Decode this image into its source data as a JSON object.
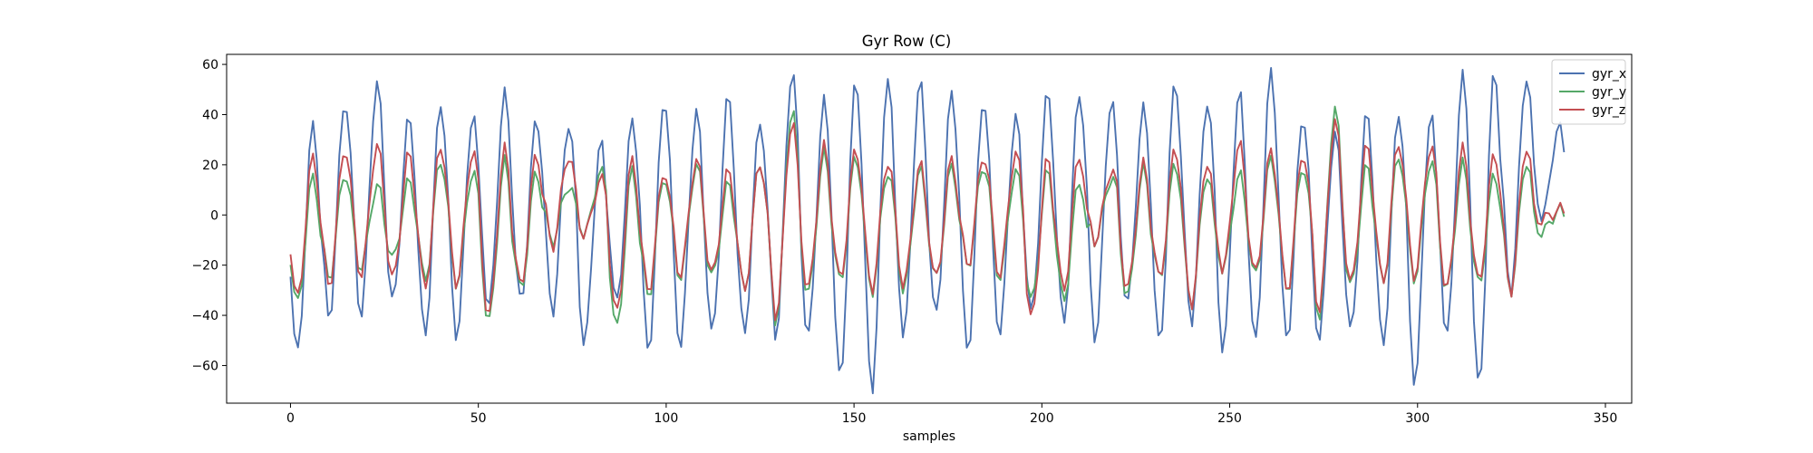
{
  "chart_data": {
    "type": "line",
    "title": "Gyr Row (C)",
    "xlabel": "samples",
    "ylabel": "",
    "xlim": [
      -17,
      357
    ],
    "ylim": [
      -75,
      64
    ],
    "xticks": [
      0,
      50,
      100,
      150,
      200,
      250,
      300,
      350
    ],
    "yticks": [
      -60,
      -40,
      -20,
      0,
      20,
      40,
      60
    ],
    "grid": false,
    "legend_position": "top-right",
    "series": [
      {
        "name": "gyr_x",
        "color": "#4c72b0",
        "period": 8.5,
        "peaks": [
          36,
          46,
          53,
          38,
          45,
          41,
          48,
          38,
          37,
          29,
          37,
          47,
          42,
          47,
          38,
          58,
          45,
          54,
          57,
          53,
          48,
          47,
          40,
          48,
          49,
          47,
          42,
          53,
          46,
          49,
          57,
          40,
          33,
          40,
          41,
          42,
          55,
          58,
          56,
          35
        ],
        "troughs": [
          -56,
          -41,
          -40,
          -35,
          -48,
          -48,
          -38,
          -35,
          -38,
          -51,
          -36,
          -54,
          -52,
          -48,
          -47,
          -48,
          -49,
          -66,
          -69,
          -48,
          -41,
          -54,
          -47,
          -40,
          -43,
          -49,
          -36,
          -52,
          -42,
          -54,
          -52,
          -49,
          -49,
          -47,
          -52,
          -66,
          -49,
          -69,
          -30,
          -1
        ],
        "values": []
      },
      {
        "name": "gyr_y",
        "color": "#55a868",
        "period": 8.5,
        "peaks": [
          15,
          17,
          12,
          13,
          22,
          18,
          21,
          17,
          12,
          17,
          18,
          16,
          20,
          12,
          21,
          43,
          24,
          23,
          18,
          18,
          19,
          20,
          18,
          17,
          14,
          15,
          18,
          20,
          17,
          16,
          22,
          20,
          43,
          19,
          24,
          22,
          20,
          16,
          22,
          2
        ],
        "troughs": [
          -36,
          -25,
          -21,
          -18,
          -26,
          -27,
          -43,
          -30,
          -10,
          -8,
          -46,
          -32,
          -25,
          -25,
          -30,
          -42,
          -32,
          -27,
          -30,
          -30,
          -26,
          -20,
          -25,
          -35,
          -34,
          -10,
          -33,
          -26,
          -35,
          -22,
          -25,
          -30,
          -41,
          -29,
          -27,
          -25,
          -30,
          -28,
          -30,
          -7
        ],
        "values": []
      },
      {
        "name": "gyr_z",
        "color": "#c44e52",
        "period": 8.5,
        "peaks": [
          23,
          27,
          28,
          24,
          28,
          26,
          26,
          24,
          24,
          14,
          22,
          18,
          22,
          17,
          21,
          38,
          27,
          26,
          22,
          20,
          22,
          24,
          25,
          22,
          24,
          18,
          20,
          26,
          22,
          28,
          25,
          25,
          38,
          27,
          29,
          28,
          26,
          24,
          28,
          2
        ],
        "troughs": [
          -34,
          -28,
          -24,
          -26,
          -29,
          -27,
          -41,
          -29,
          -12,
          -8,
          -40,
          -30,
          -24,
          -24,
          -30,
          -40,
          -30,
          -26,
          -29,
          -28,
          -26,
          -20,
          -24,
          -42,
          -30,
          -10,
          -30,
          -26,
          -35,
          -22,
          -24,
          -30,
          -38,
          -28,
          -27,
          -24,
          -30,
          -27,
          -30,
          -2
        ],
        "values": []
      }
    ]
  }
}
